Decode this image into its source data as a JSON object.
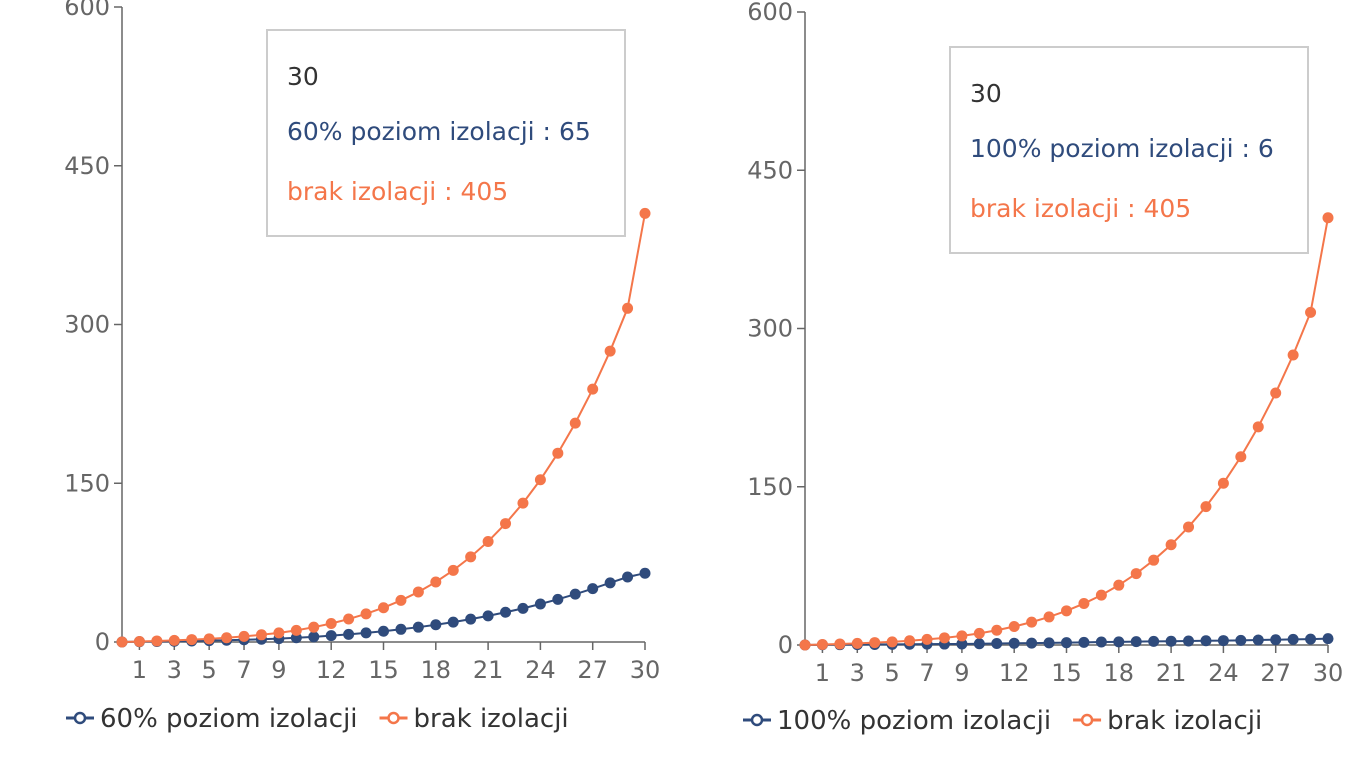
{
  "chart_data": [
    {
      "type": "line",
      "x": [
        0,
        1,
        2,
        3,
        4,
        5,
        6,
        7,
        8,
        9,
        10,
        11,
        12,
        13,
        14,
        15,
        16,
        17,
        18,
        19,
        20,
        21,
        22,
        23,
        24,
        25,
        26,
        27,
        28,
        29,
        30
      ],
      "x_ticks": [
        1,
        3,
        5,
        7,
        9,
        12,
        15,
        18,
        21,
        24,
        27,
        30
      ],
      "y_ticks": [
        0,
        150,
        300,
        450,
        600
      ],
      "ylim": [
        0,
        600
      ],
      "xlim": [
        0,
        30
      ],
      "series": [
        {
          "name": "60% poziom izolacji",
          "color": "#2f4b7c",
          "values": [
            0,
            0.3,
            0.5,
            0.7,
            1,
            1.3,
            1.7,
            2.1,
            2.6,
            3.2,
            4,
            4.9,
            6,
            7.2,
            8.6,
            10.2,
            12,
            14,
            16.3,
            18.8,
            21.6,
            24.7,
            28.1,
            31.8,
            35.9,
            40.3,
            45.2,
            50.4,
            55.9,
            61.4,
            65
          ]
        },
        {
          "name": "brak izolacji",
          "color": "#f4764a",
          "values": [
            0,
            0.5,
            1,
            1.5,
            2.3,
            3,
            4,
            5.3,
            6.8,
            8.6,
            11,
            14,
            17.5,
            21.7,
            26.6,
            32.4,
            39.3,
            47.3,
            56.7,
            67.7,
            80.4,
            95,
            111.9,
            131.2,
            153.3,
            178.4,
            206.8,
            238.9,
            274.9,
            315.3,
            405
          ]
        }
      ],
      "tooltip": {
        "x": "30",
        "lines": [
          {
            "label": "60% poziom izolacji",
            "value": "65"
          },
          {
            "label": "brak izolacji",
            "value": "405"
          }
        ]
      }
    },
    {
      "type": "line",
      "x": [
        0,
        1,
        2,
        3,
        4,
        5,
        6,
        7,
        8,
        9,
        10,
        11,
        12,
        13,
        14,
        15,
        16,
        17,
        18,
        19,
        20,
        21,
        22,
        23,
        24,
        25,
        26,
        27,
        28,
        29,
        30
      ],
      "x_ticks": [
        1,
        3,
        5,
        7,
        9,
        12,
        15,
        18,
        21,
        24,
        27,
        30
      ],
      "y_ticks": [
        0,
        150,
        300,
        450,
        600
      ],
      "ylim": [
        0,
        600
      ],
      "xlim": [
        0,
        30
      ],
      "series": [
        {
          "name": "100% poziom izolacji",
          "color": "#2f4b7c",
          "values": [
            0,
            0.2,
            0.3,
            0.4,
            0.5,
            0.6,
            0.7,
            0.8,
            0.9,
            1,
            1.2,
            1.4,
            1.6,
            1.8,
            2,
            2.2,
            2.5,
            2.8,
            3,
            3.2,
            3.4,
            3.6,
            3.8,
            4,
            4.2,
            4.4,
            4.7,
            5,
            5.3,
            5.6,
            6
          ]
        },
        {
          "name": "brak izolacji",
          "color": "#f4764a",
          "values": [
            0,
            0.5,
            1,
            1.5,
            2.3,
            3,
            4,
            5.3,
            6.8,
            8.6,
            11,
            14,
            17.5,
            21.7,
            26.6,
            32.4,
            39.3,
            47.3,
            56.7,
            67.7,
            80.4,
            95,
            111.9,
            131.2,
            153.3,
            178.4,
            206.8,
            238.9,
            274.9,
            315.3,
            405
          ]
        }
      ],
      "tooltip": {
        "x": "30",
        "lines": [
          {
            "label": "100% poziom izolacji",
            "value": "6"
          },
          {
            "label": "brak izolacji",
            "value": "405"
          }
        ]
      }
    }
  ]
}
